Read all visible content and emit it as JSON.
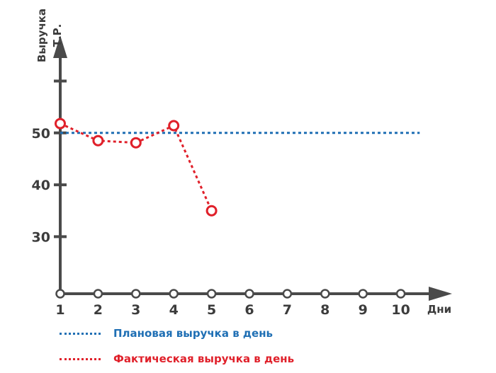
{
  "chart_data": {
    "type": "line",
    "xlabel": "Дни",
    "ylabel_lines": [
      "Выручка",
      "Т.Р."
    ],
    "x_ticks": [
      1,
      2,
      3,
      4,
      5,
      6,
      7,
      8,
      9,
      10
    ],
    "y_ticks": [
      30,
      40,
      50
    ],
    "xlim": [
      1,
      10.7
    ],
    "ylim": [
      19,
      62
    ],
    "series": [
      {
        "name": "Плановая выручка в день",
        "color": "#1f6fb4",
        "x": [
          1,
          10.5
        ],
        "y": [
          50,
          50
        ]
      },
      {
        "name": "Фактическая выручка в день",
        "color": "#e0202a",
        "x": [
          1,
          2,
          3,
          4,
          5
        ],
        "y": [
          51.8,
          48.5,
          48.1,
          51.4,
          35
        ]
      }
    ],
    "axis_color": "#4a4a4a"
  },
  "legend": {
    "plan_label": "Плановая выручка в день",
    "fact_label": "Фактическая выручка в день"
  }
}
